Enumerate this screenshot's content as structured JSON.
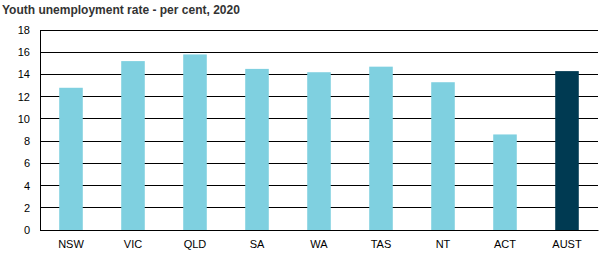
{
  "chart_data": {
    "type": "bar",
    "title": "Youth unemployment rate - per cent, 2020",
    "categories": [
      "NSW",
      "VIC",
      "QLD",
      "SA",
      "WA",
      "TAS",
      "NT",
      "ACT",
      "AUST"
    ],
    "values": [
      12.8,
      15.2,
      15.8,
      14.5,
      14.2,
      14.7,
      13.3,
      8.6,
      14.3
    ],
    "colors": [
      "#7fd0e0",
      "#7fd0e0",
      "#7fd0e0",
      "#7fd0e0",
      "#7fd0e0",
      "#7fd0e0",
      "#7fd0e0",
      "#7fd0e0",
      "#003a52"
    ],
    "ylim": [
      0,
      18
    ],
    "yticks": [
      0,
      2,
      4,
      6,
      8,
      10,
      12,
      14,
      16,
      18
    ],
    "grid": true
  }
}
